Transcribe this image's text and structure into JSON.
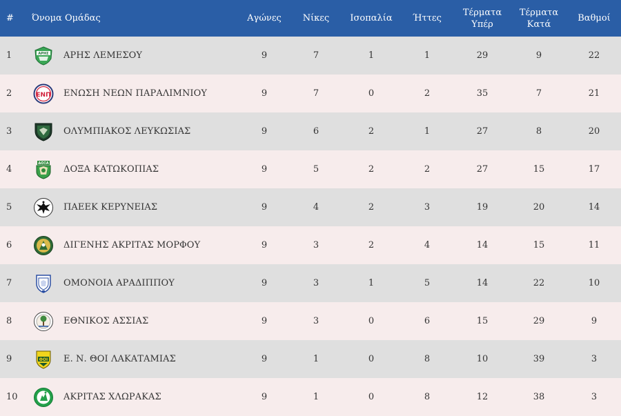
{
  "headers": {
    "rank": "#",
    "team": "Όνομα Ομάδας",
    "played": "Αγώνες",
    "wins": "Νίκες",
    "draws": "Ισοπαλία",
    "losses": "Ήττες",
    "gf_line1": "Τέρματα",
    "gf_line2": "Υπέρ",
    "ga_line1": "Τέρματα",
    "ga_line2": "Κατά",
    "points": "Βαθμοί"
  },
  "rows": [
    {
      "rank": "1",
      "team": "ΑΡΗΣ ΛΕΜΕΣΟΥ",
      "logo_icon": "aris-limassol-crest-icon",
      "logo_text": "ΑΡΗΣ",
      "played": "9",
      "wins": "7",
      "draws": "1",
      "losses": "1",
      "gf": "29",
      "ga": "9",
      "points": "22"
    },
    {
      "rank": "2",
      "team": "ΕΝΩΣΗ ΝΕΩΝ ΠΑΡΑΛΙΜΝΙΟΥ",
      "logo_icon": "enosis-paralimni-crest-icon",
      "logo_text": "ΕΝΠ",
      "played": "9",
      "wins": "7",
      "draws": "0",
      "losses": "2",
      "gf": "35",
      "ga": "7",
      "points": "21"
    },
    {
      "rank": "3",
      "team": "ΟΛΥΜΠΙΑΚΟΣ ΛΕΥΚΩΣΙΑΣ",
      "logo_icon": "olympiakos-nicosia-crest-icon",
      "logo_text": "",
      "played": "9",
      "wins": "6",
      "draws": "2",
      "losses": "1",
      "gf": "27",
      "ga": "8",
      "points": "20"
    },
    {
      "rank": "4",
      "team": "ΔΟΞΑ ΚΑΤΩΚΟΠΙΑΣ",
      "logo_icon": "doxa-katokopias-crest-icon",
      "logo_text": "ΔΟΞΑ",
      "played": "9",
      "wins": "5",
      "draws": "2",
      "losses": "2",
      "gf": "27",
      "ga": "15",
      "points": "17"
    },
    {
      "rank": "5",
      "team": "ΠΑΕΕΚ ΚΕΡΥΝΕΙΑΣ",
      "logo_icon": "paeek-eagle-crest-icon",
      "logo_text": "",
      "played": "9",
      "wins": "4",
      "draws": "2",
      "losses": "3",
      "gf": "19",
      "ga": "20",
      "points": "14"
    },
    {
      "rank": "6",
      "team": "ΔΙΓΕΝΗΣ ΑΚΡΙΤΑΣ ΜΟΡΦΟΥ",
      "logo_icon": "digenis-morfou-crest-icon",
      "logo_text": "",
      "played": "9",
      "wins": "3",
      "draws": "2",
      "losses": "4",
      "gf": "14",
      "ga": "15",
      "points": "11"
    },
    {
      "rank": "7",
      "team": "ΟΜΟΝΟΙΑ ΑΡΑΔΙΠΠΟΥ",
      "logo_icon": "omonia-aradippou-crest-icon",
      "logo_text": "",
      "played": "9",
      "wins": "3",
      "draws": "1",
      "losses": "5",
      "gf": "14",
      "ga": "22",
      "points": "10"
    },
    {
      "rank": "8",
      "team": "ΕΘΝΙΚΟΣ ΑΣΣΙΑΣ",
      "logo_icon": "ethnikos-assias-crest-icon",
      "logo_text": "",
      "played": "9",
      "wins": "3",
      "draws": "0",
      "losses": "6",
      "gf": "15",
      "ga": "29",
      "points": "9"
    },
    {
      "rank": "9",
      "team": "Ε. Ν. ΘΟΙ ΛΑΚΑΤΑΜΙΑΣ",
      "logo_icon": "thoi-lakatamias-crest-icon",
      "logo_text": "ΘΟΙ",
      "played": "9",
      "wins": "1",
      "draws": "0",
      "losses": "8",
      "gf": "10",
      "ga": "39",
      "points": "3"
    },
    {
      "rank": "10",
      "team": "ΑΚΡΙΤΑΣ ΧΛΩΡΑΚΑΣ",
      "logo_icon": "akritas-chlorakas-crest-icon",
      "logo_text": "",
      "played": "9",
      "wins": "1",
      "draws": "0",
      "losses": "8",
      "gf": "12",
      "ga": "38",
      "points": "3"
    }
  ],
  "colors": {
    "header_bg": "#2a5ea6",
    "row_odd_bg": "#dfdfdf",
    "row_even_bg": "#f7ecec"
  }
}
